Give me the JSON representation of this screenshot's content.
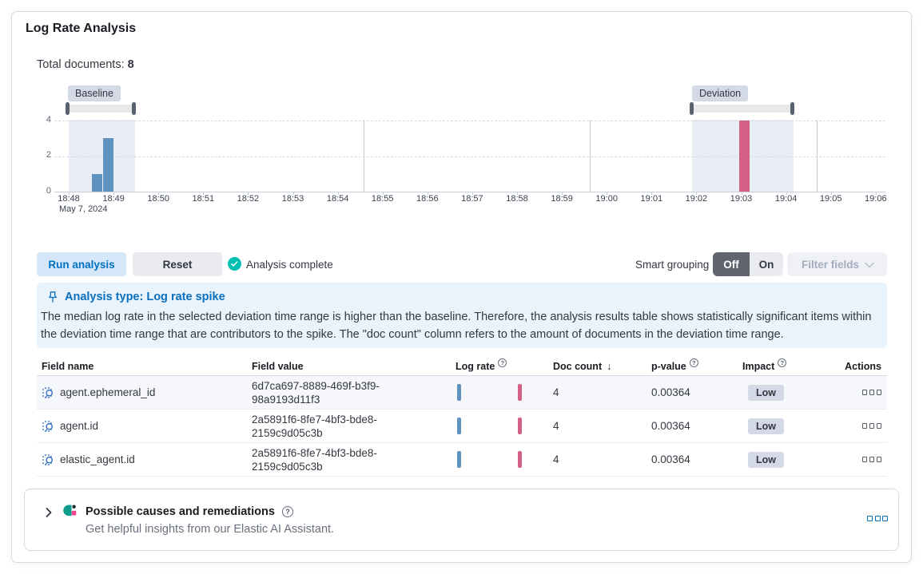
{
  "card": {
    "title": "Log Rate Analysis"
  },
  "summary": {
    "label": "Total documents:",
    "value": "8"
  },
  "chart_data": {
    "type": "bar",
    "x_axis_date": "May 7, 2024",
    "x_tick_labels": [
      "18:48",
      "18:49",
      "18:50",
      "18:51",
      "18:52",
      "18:53",
      "18:54",
      "18:55",
      "18:56",
      "18:57",
      "18:58",
      "18:59",
      "19:00",
      "19:01",
      "19:02",
      "19:03",
      "19:04",
      "19:05",
      "19:06"
    ],
    "y_tick_labels": [
      "0",
      "2",
      "4"
    ],
    "ylim": [
      0,
      4
    ],
    "bucket_interval": "15s",
    "series_colors": {
      "baseline": "#6092C0",
      "deviation": "#D36086"
    },
    "bars": [
      {
        "series": "baseline",
        "time": "18:48:30",
        "m": 0.5,
        "w": 0.25,
        "v": 1
      },
      {
        "series": "baseline",
        "time": "18:48:45",
        "m": 0.75,
        "w": 0.25,
        "v": 3
      },
      {
        "series": "deviation",
        "time": "19:03:00",
        "m": 14.95,
        "w": 0.25,
        "v": 4
      }
    ],
    "regions": [
      {
        "name": "Baseline",
        "from_min": 0,
        "to_min": 1.48
      },
      {
        "name": "Deviation",
        "from_min": 13.9,
        "to_min": 16.17
      }
    ],
    "h_gridlines": [
      2,
      4
    ],
    "v_gridlines_min": [
      6.58,
      11.63,
      16.68
    ]
  },
  "controls": {
    "run_button": "Run analysis",
    "reset_button": "Reset",
    "status": "Analysis complete",
    "smart_grouping_label": "Smart grouping",
    "toggle_off": "Off",
    "toggle_on": "On",
    "filter_fields_button": "Filter fields"
  },
  "callout": {
    "title": "Analysis type: Log rate spike",
    "body": "The median log rate in the selected deviation time range is higher than the baseline. Therefore, the analysis results table shows statistically significant items within the deviation time range that are contributors to the spike. The \"doc count\" column refers to the amount of documents in the deviation time range."
  },
  "table": {
    "headers": {
      "field_name": "Field name",
      "field_value": "Field value",
      "log_rate": "Log rate",
      "doc_count": "Doc count",
      "p_value": "p-value",
      "impact": "Impact",
      "actions": "Actions"
    },
    "sort": {
      "column": "doc_count",
      "direction": "desc"
    },
    "rows": [
      {
        "field_name": "agent.ephemeral_id",
        "field_value": "6d7ca697-8889-469f-b3f9-98a9193d11f3",
        "doc_count": "4",
        "p_value": "0.00364",
        "impact": "Low"
      },
      {
        "field_name": "agent.id",
        "field_value": "2a5891f6-8fe7-4bf3-bde8-2159c9d05c3b",
        "doc_count": "4",
        "p_value": "0.00364",
        "impact": "Low"
      },
      {
        "field_name": "elastic_agent.id",
        "field_value": "2a5891f6-8fe7-4bf3-bde8-2159c9d05c3b",
        "doc_count": "4",
        "p_value": "0.00364",
        "impact": "Low"
      }
    ]
  },
  "footer": {
    "title": "Possible causes and remediations",
    "subtitle": "Get helpful insights from our Elastic AI Assistant."
  },
  "icons": {
    "info_glyph": "?",
    "sort_desc_glyph": "↓",
    "help_glyph": "?"
  },
  "colors": {
    "primary": "#0071c2",
    "success": "#00BFB3",
    "baseline_bar": "#6092C0",
    "deviation_bar": "#D36086",
    "badge_bg": "#d3dae6",
    "callout_bg": "#e9f3fc",
    "toggle_selected_bg": "#60646F",
    "row_stripe": "#f5f7fa"
  }
}
